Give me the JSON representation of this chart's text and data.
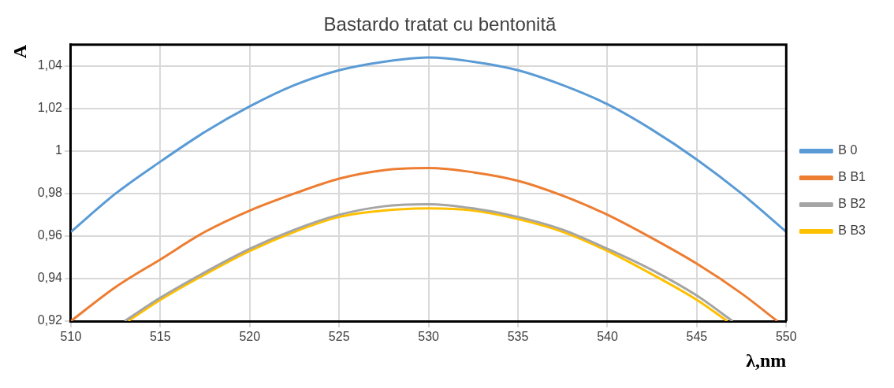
{
  "chart_data": {
    "type": "line",
    "title": "Bastardo tratat cu bentonită",
    "xlabel": "λ,nm",
    "ylabel": "A",
    "xlim": [
      510,
      550
    ],
    "xticks": [
      510,
      515,
      520,
      525,
      530,
      535,
      540,
      545,
      550
    ],
    "ylim": [
      0.92,
      1.05
    ],
    "yticks": [
      {
        "value": 0.92,
        "label": "0,92"
      },
      {
        "value": 0.94,
        "label": "0,94"
      },
      {
        "value": 0.96,
        "label": "0,96"
      },
      {
        "value": 0.98,
        "label": "0,98"
      },
      1,
      {
        "value": 1.02,
        "label": "1,02"
      },
      {
        "value": 1.04,
        "label": "1,04"
      }
    ],
    "grid": true,
    "legend": "right",
    "marker": "none",
    "line_style": "solid",
    "series": [
      {
        "name": "B 0",
        "color": "#5b9bd5",
        "x": [
          510,
          512.5,
          515,
          517.5,
          520,
          522.5,
          525,
          527.5,
          530,
          532.5,
          535,
          537.5,
          540,
          542.5,
          545,
          547.5,
          550
        ],
        "values": [
          0.962,
          0.98,
          0.995,
          1.009,
          1.021,
          1.031,
          1.038,
          1.042,
          1.044,
          1.042,
          1.038,
          1.031,
          1.022,
          1.01,
          0.996,
          0.98,
          0.962
        ]
      },
      {
        "name": "B B1",
        "color": "#ed7d31",
        "x": [
          510,
          512.5,
          515,
          517.5,
          520,
          522.5,
          525,
          527.5,
          530,
          532.5,
          535,
          537.5,
          540,
          542.5,
          545,
          547.5,
          549.5
        ],
        "values": [
          0.92,
          0.936,
          0.949,
          0.962,
          0.972,
          0.98,
          0.987,
          0.991,
          0.992,
          0.99,
          0.986,
          0.979,
          0.97,
          0.959,
          0.947,
          0.933,
          0.92
        ]
      },
      {
        "name": "B B2",
        "color": "#a5a5a5",
        "x": [
          513,
          515,
          517.5,
          520,
          522.5,
          525,
          527.5,
          530,
          532.5,
          535,
          537.5,
          540,
          542.5,
          545,
          547
        ],
        "values": [
          0.92,
          0.931,
          0.943,
          0.954,
          0.963,
          0.97,
          0.974,
          0.975,
          0.973,
          0.969,
          0.963,
          0.954,
          0.944,
          0.932,
          0.92
        ]
      },
      {
        "name": "B B3",
        "color": "#ffc000",
        "x": [
          513.2,
          515,
          517.5,
          520,
          522.5,
          525,
          527.5,
          530,
          532.5,
          535,
          537.5,
          540,
          542.5,
          545,
          546.7
        ],
        "values": [
          0.92,
          0.93,
          0.942,
          0.953,
          0.962,
          0.969,
          0.972,
          0.973,
          0.972,
          0.968,
          0.962,
          0.953,
          0.942,
          0.93,
          0.92
        ]
      }
    ]
  }
}
